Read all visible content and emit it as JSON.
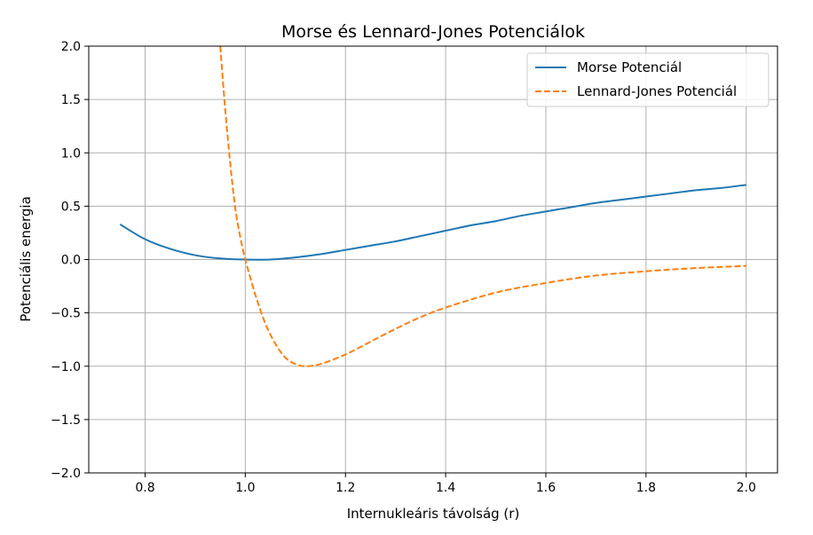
{
  "chart_data": {
    "type": "line",
    "title": "Morse és Lennard-Jones Potenciálok",
    "xlabel": "Internukleáris távolság (r)",
    "ylabel": "Potenciális energia",
    "xlim": [
      0.6875,
      2.0625
    ],
    "ylim": [
      -2.0,
      2.0
    ],
    "xticks": [
      0.8,
      1.0,
      1.2,
      1.4,
      1.6,
      1.8,
      2.0
    ],
    "xtick_labels": [
      "0.8",
      "1.0",
      "1.2",
      "1.4",
      "1.6",
      "1.8",
      "2.0"
    ],
    "yticks": [
      -2.0,
      -1.5,
      -1.0,
      -0.5,
      0.0,
      0.5,
      1.0,
      1.5,
      2.0
    ],
    "ytick_labels": [
      "−2.0",
      "−1.5",
      "−1.0",
      "−0.5",
      "0.0",
      "0.5",
      "1.0",
      "1.5",
      "2.0"
    ],
    "grid": true,
    "legend_position": "top-right",
    "series": [
      {
        "name": "Morse Potenciál",
        "color": "#1f77b4",
        "style": "solid",
        "x": [
          0.75,
          0.8,
          0.85,
          0.9,
          0.95,
          1.0,
          1.05,
          1.1,
          1.15,
          1.2,
          1.25,
          1.3,
          1.35,
          1.4,
          1.45,
          1.5,
          1.55,
          1.6,
          1.65,
          1.7,
          1.75,
          1.8,
          1.85,
          1.9,
          1.95,
          2.0
        ],
        "y": [
          0.33,
          0.19,
          0.1,
          0.04,
          0.01,
          0.0,
          0.0,
          0.02,
          0.05,
          0.09,
          0.13,
          0.17,
          0.22,
          0.27,
          0.32,
          0.36,
          0.41,
          0.45,
          0.49,
          0.53,
          0.56,
          0.59,
          0.62,
          0.65,
          0.67,
          0.7
        ]
      },
      {
        "name": "Lennard-Jones Potenciál",
        "color": "#ff7f0e",
        "style": "dashed",
        "x": [
          0.95,
          0.96,
          0.97,
          0.98,
          0.99,
          1.0,
          1.02,
          1.04,
          1.06,
          1.08,
          1.1,
          1.12,
          1.15,
          1.2,
          1.25,
          1.3,
          1.35,
          1.4,
          1.5,
          1.6,
          1.7,
          1.8,
          1.9,
          2.0
        ],
        "y": [
          2.0,
          1.4,
          0.9,
          0.48,
          0.21,
          0.0,
          -0.33,
          -0.6,
          -0.79,
          -0.92,
          -0.98,
          -1.0,
          -0.98,
          -0.89,
          -0.77,
          -0.65,
          -0.54,
          -0.45,
          -0.31,
          -0.22,
          -0.15,
          -0.11,
          -0.08,
          -0.06
        ]
      }
    ]
  }
}
